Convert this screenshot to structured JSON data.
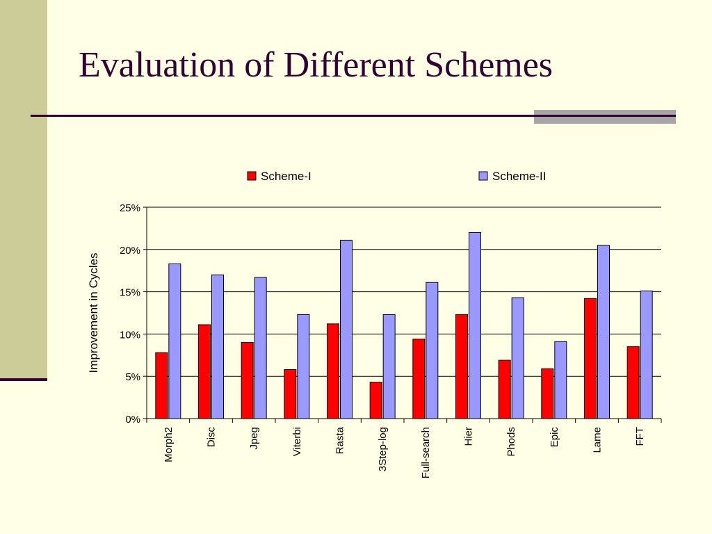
{
  "slide": {
    "title": "Evaluation of Different Schemes"
  },
  "chart_data": {
    "type": "bar",
    "title": "",
    "xlabel": "",
    "ylabel": "Improvement in Cycles",
    "ylim": [
      0,
      25
    ],
    "yticks": [
      "0%",
      "5%",
      "10%",
      "15%",
      "20%",
      "25%"
    ],
    "grid": true,
    "legend_position": "top",
    "categories": [
      "Morph2",
      "Disc",
      "Jpeg",
      "Viterbi",
      "Rasta",
      "3Step-log",
      "Full-search",
      "Hier",
      "Phods",
      "Epic",
      "Lame",
      "FFT"
    ],
    "series": [
      {
        "name": "Scheme-I",
        "color": "#FF0000",
        "values": [
          7.8,
          11.1,
          9.0,
          5.8,
          11.2,
          4.3,
          9.4,
          12.3,
          6.9,
          5.9,
          14.2,
          8.5
        ]
      },
      {
        "name": "Scheme-II",
        "color": "#9999FF",
        "values": [
          18.3,
          17.0,
          16.7,
          12.3,
          21.1,
          12.3,
          16.1,
          22.0,
          14.3,
          9.1,
          20.5,
          15.1
        ]
      }
    ]
  }
}
